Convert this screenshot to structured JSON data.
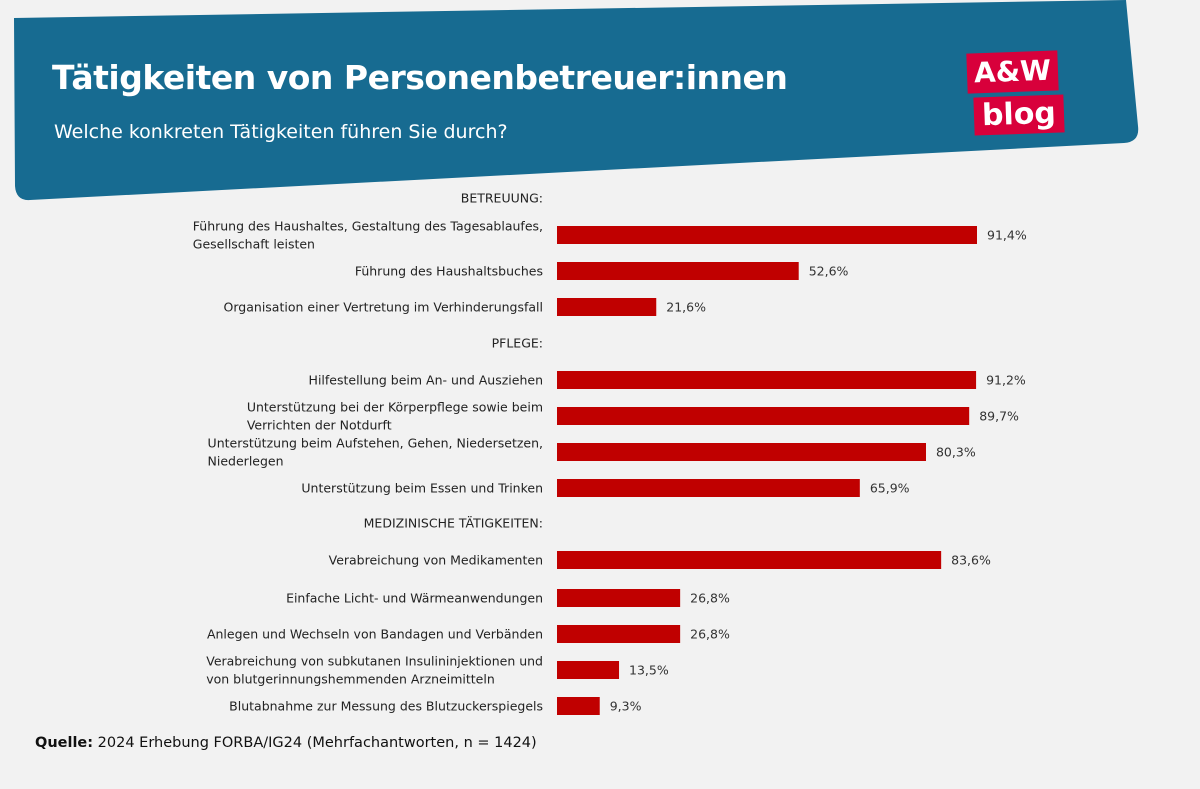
{
  "header": {
    "title": "Tätigkeiten von Personenbetreuer:innen",
    "subtitle": "Welche konkreten Tätigkeiten führen Sie durch?",
    "logo_line1": "A&W",
    "logo_line2": "blog"
  },
  "colors": {
    "banner": "#176b91",
    "bar": "#c00000",
    "logo": "#d8003b"
  },
  "chart_data": {
    "type": "bar",
    "orientation": "horizontal",
    "unit": "%",
    "xlim": [
      0,
      100
    ],
    "rows": [
      {
        "kind": "section",
        "label": "BETREUUNG:"
      },
      {
        "kind": "bar",
        "label": [
          "Führung des Haushaltes, Gestaltung des Tagesablaufes,",
          "Gesellschaft leisten"
        ],
        "value": 91.4,
        "value_label": "91,4%"
      },
      {
        "kind": "bar",
        "label": [
          "Führung des Haushaltsbuches"
        ],
        "value": 52.6,
        "value_label": "52,6%"
      },
      {
        "kind": "bar",
        "label": [
          "Organisation einer Vertretung im Verhinderungsfall"
        ],
        "value": 21.6,
        "value_label": "21,6%"
      },
      {
        "kind": "section",
        "label": "PFLEGE:"
      },
      {
        "kind": "bar",
        "label": [
          "Hilfestellung beim An- und Ausziehen"
        ],
        "value": 91.2,
        "value_label": "91,2%"
      },
      {
        "kind": "bar",
        "label": [
          "Unterstützung bei der Körperpflege sowie beim",
          "Verrichten der Notdurft"
        ],
        "value": 89.7,
        "value_label": "89,7%"
      },
      {
        "kind": "bar",
        "label": [
          "Unterstützung beim Aufstehen, Gehen, Niedersetzen,",
          "Niederlegen"
        ],
        "value": 80.3,
        "value_label": "80,3%"
      },
      {
        "kind": "bar",
        "label": [
          "Unterstützung beim Essen und Trinken"
        ],
        "value": 65.9,
        "value_label": "65,9%"
      },
      {
        "kind": "section",
        "label": "MEDIZINISCHE TÄTIGKEITEN:"
      },
      {
        "kind": "bar",
        "label": [
          "Verabreichung von Medikamenten"
        ],
        "value": 83.6,
        "value_label": "83,6%"
      },
      {
        "kind": "bar",
        "label": [
          "Einfache Licht- und Wärmeanwendungen"
        ],
        "value": 26.8,
        "value_label": "26,8%"
      },
      {
        "kind": "bar",
        "label": [
          "Anlegen und Wechseln von Bandagen und Verbänden"
        ],
        "value": 26.8,
        "value_label": "26,8%"
      },
      {
        "kind": "bar",
        "label": [
          "Verabreichung von subkutanen Insulininjektionen und",
          "von blutgerinnungshemmenden Arzneimitteln"
        ],
        "value": 13.5,
        "value_label": "13,5%"
      },
      {
        "kind": "bar",
        "label": [
          "Blutabnahme zur Messung des Blutzuckerspiegels"
        ],
        "value": 9.3,
        "value_label": "9,3%"
      }
    ]
  },
  "source": {
    "label": "Quelle:",
    "text": "2024 Erhebung FORBA/IG24 (Mehrfachantworten, n = 1424)"
  }
}
